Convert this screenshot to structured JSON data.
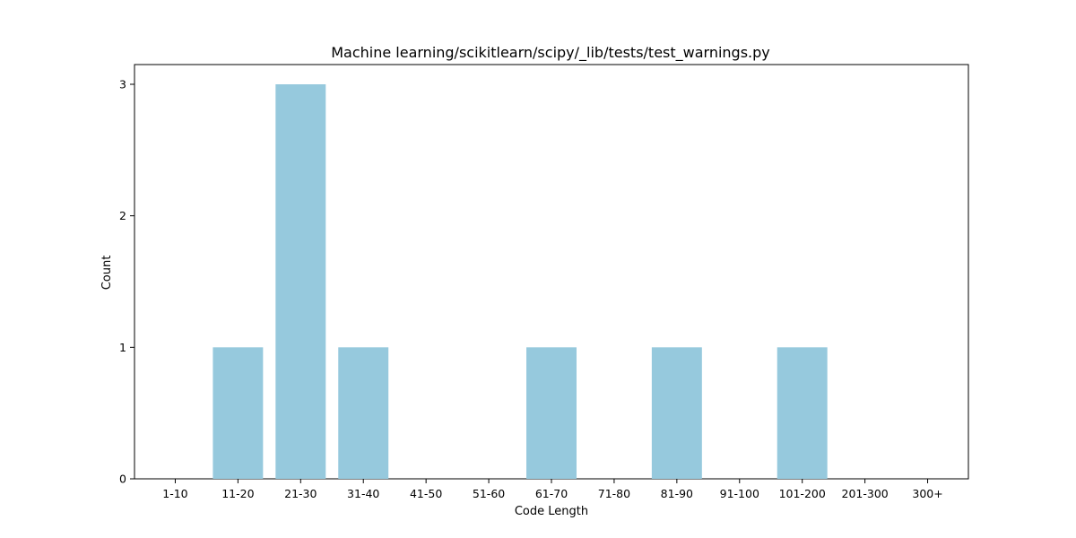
{
  "colors": {
    "bar": "#96c9dd",
    "axis": "#000000",
    "background": "#ffffff"
  },
  "chart_data": {
    "type": "bar",
    "title": "Machine learning/scikitlearn/scipy/_lib/tests/test_warnings.py",
    "xlabel": "Code Length",
    "ylabel": "Count",
    "categories": [
      "1-10",
      "11-20",
      "21-30",
      "31-40",
      "41-50",
      "51-60",
      "61-70",
      "71-80",
      "81-90",
      "91-100",
      "101-200",
      "201-300",
      "300+"
    ],
    "values": [
      0,
      1,
      3,
      1,
      0,
      0,
      1,
      0,
      1,
      0,
      1,
      0,
      0
    ],
    "ylim": [
      0,
      3.15
    ],
    "yticks": [
      0,
      1,
      2,
      3
    ],
    "grid": false,
    "legend": "none"
  }
}
